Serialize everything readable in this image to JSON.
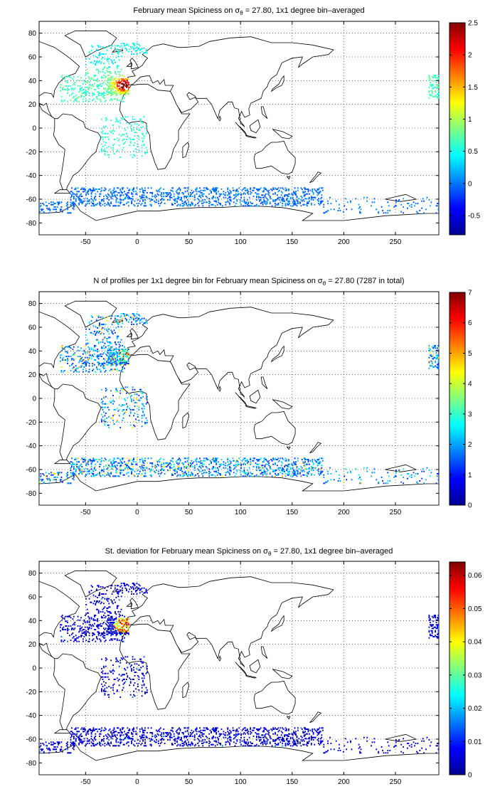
{
  "figure": {
    "panels": [
      {
        "title": "February mean Spiciness on σθ = 27.80, 1x1 degree bin–averaged",
        "title_parts": {
          "pre": "February mean Spiciness on σ",
          "sub": "θ",
          "post": " = 27.80, 1x1 degree bin–averaged"
        },
        "colorbar": {
          "min": -0.8,
          "max": 2.5,
          "ticks": [
            -0.5,
            0,
            0.5,
            1,
            1.5,
            2,
            2.5
          ],
          "tick_labels": [
            "-0.5",
            "0",
            "0.5",
            "1",
            "1.5",
            "2",
            "2.5"
          ]
        }
      },
      {
        "title": "N of profiles per 1x1 degree bin for February mean Spiciness on σθ = 27.80 (7287 in total)",
        "title_parts": {
          "pre": "N of profiles per 1x1 degree bin for February mean Spiciness on σ",
          "sub": "θ",
          "post": " = 27.80 (7287 in total)"
        },
        "colorbar": {
          "min": 0,
          "max": 7,
          "ticks": [
            0,
            1,
            2,
            3,
            4,
            5,
            6,
            7
          ],
          "tick_labels": [
            "0",
            "1",
            "2",
            "3",
            "4",
            "5",
            "6",
            "7"
          ]
        }
      },
      {
        "title": "St. deviation for February mean Spiciness on σθ = 27.80, 1x1 degree bin–averaged",
        "title_parts": {
          "pre": "St. deviation for February mean Spiciness on σ",
          "sub": "θ",
          "post": " = 27.80, 1x1 degree bin–averaged"
        },
        "colorbar": {
          "min": 0,
          "max": 0.064,
          "ticks": [
            0,
            0.01,
            0.02,
            0.03,
            0.04,
            0.05,
            0.06
          ],
          "tick_labels": [
            "0",
            "0.01",
            "0.02",
            "0.03",
            "0.04",
            "0.05",
            "0.06"
          ]
        }
      }
    ],
    "x_axis": {
      "range": [
        -95,
        292
      ],
      "ticks": [
        -50,
        0,
        50,
        100,
        150,
        200,
        250
      ],
      "tick_labels": [
        "-50",
        "0",
        "50",
        "100",
        "150",
        "200",
        "250"
      ]
    },
    "y_axis": {
      "range": [
        -90,
        90
      ],
      "ticks": [
        -80,
        -60,
        -40,
        -20,
        0,
        20,
        40,
        60,
        80
      ],
      "tick_labels": [
        "-80",
        "-60",
        "-40",
        "-20",
        "0",
        "20",
        "40",
        "60",
        "80"
      ]
    },
    "grid": true,
    "colormap": "jet"
  }
}
